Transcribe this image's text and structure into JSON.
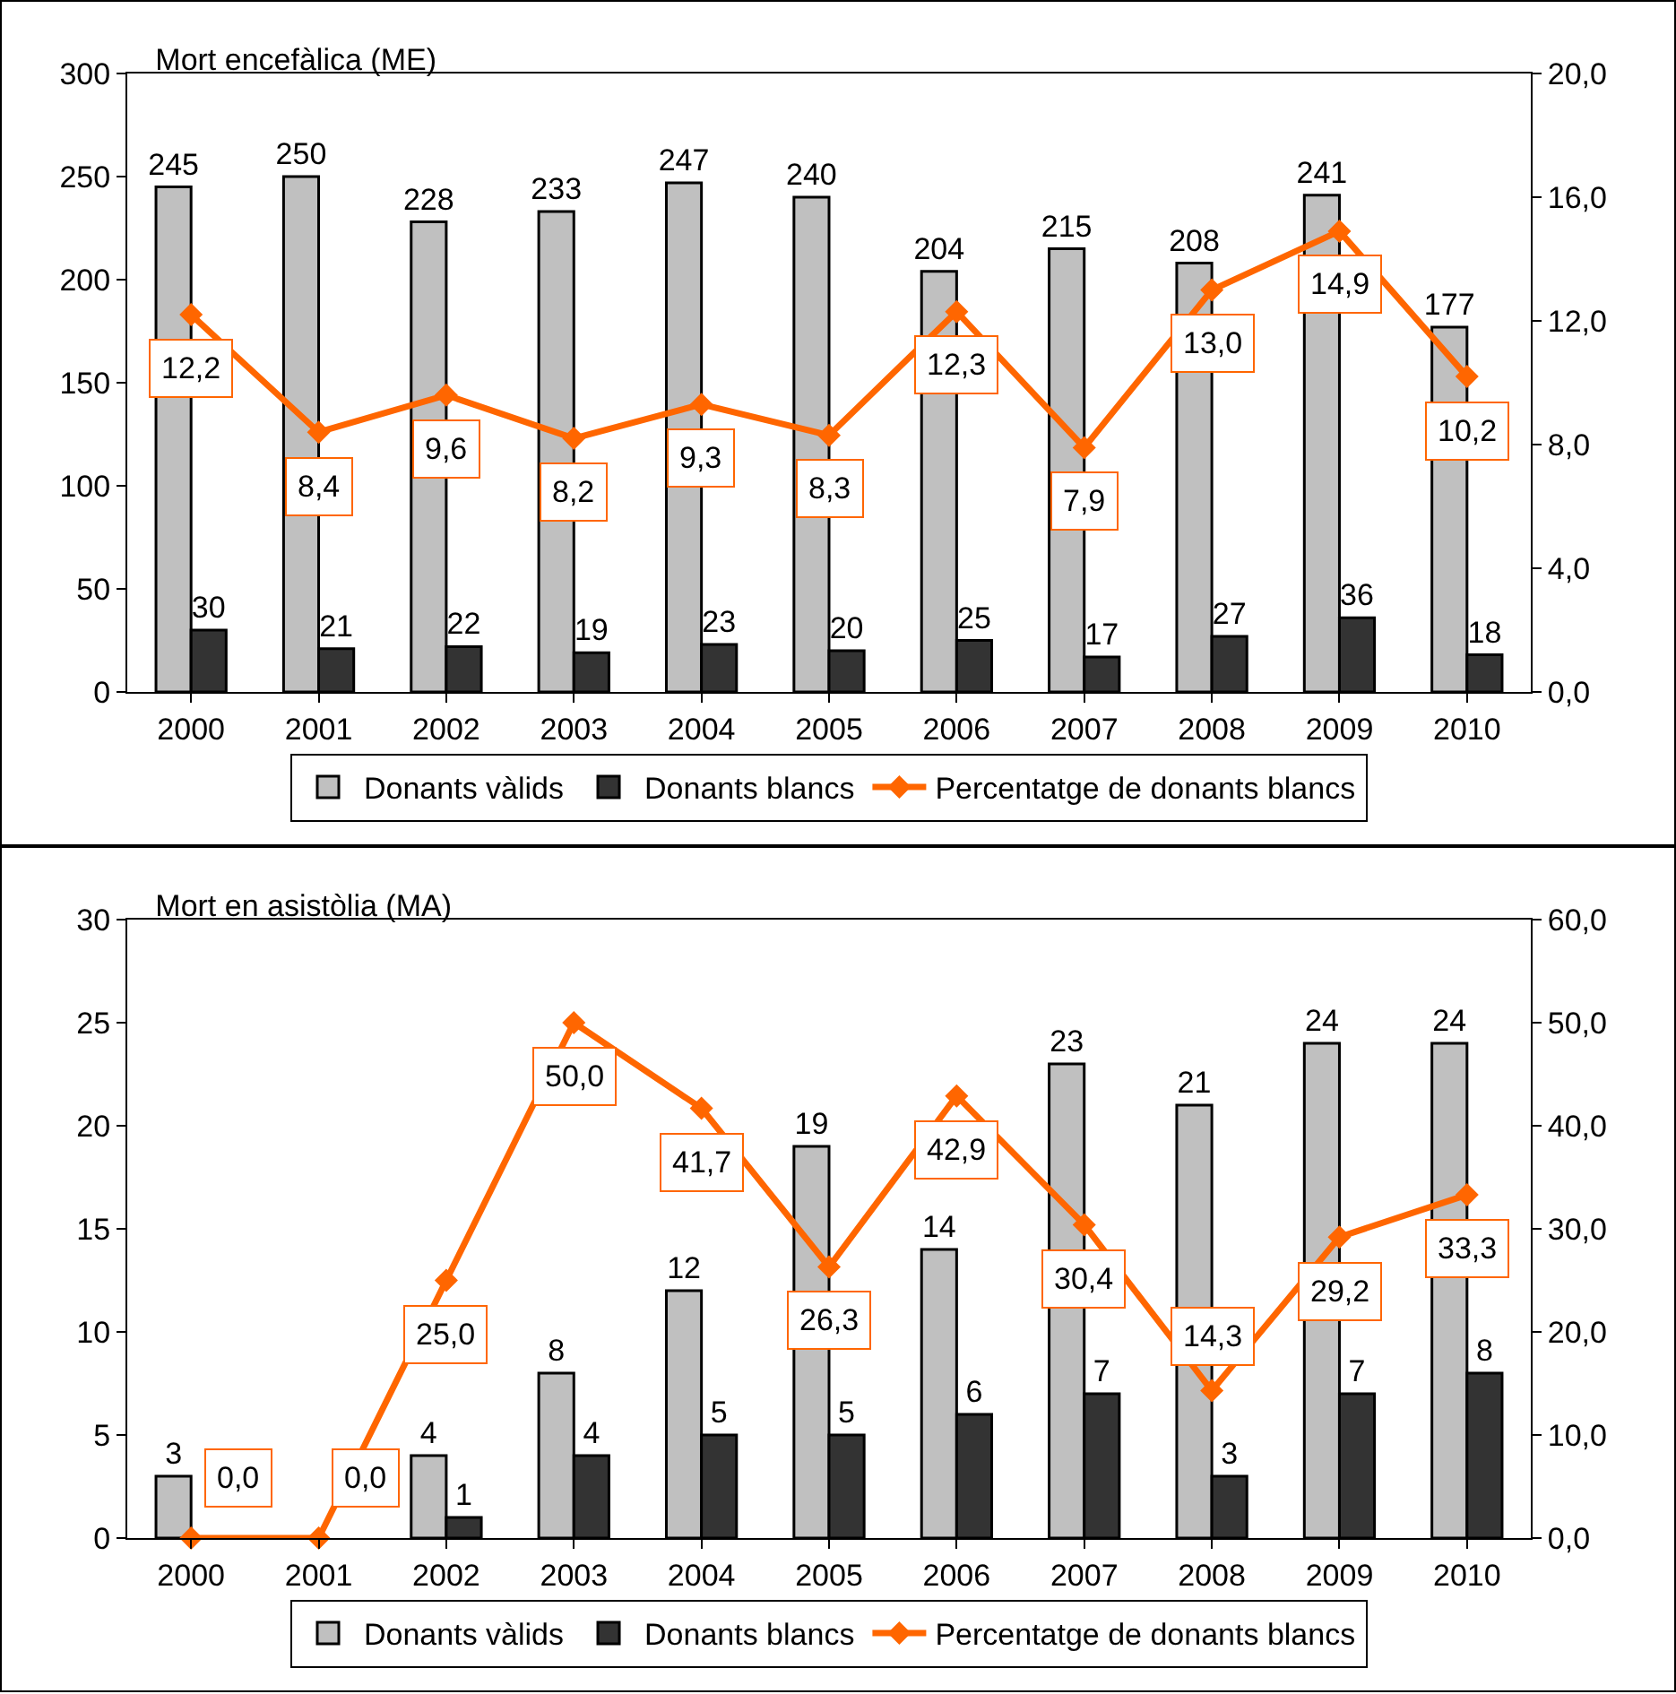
{
  "chart_data": [
    {
      "type": "bar",
      "title": "Mort encefàlica (ME)",
      "categories": [
        "2000",
        "2001",
        "2002",
        "2003",
        "2004",
        "2005",
        "2006",
        "2007",
        "2008",
        "2009",
        "2010"
      ],
      "series": [
        {
          "name": "Donants vàlids",
          "color": "#c0c0c0",
          "values": [
            245,
            250,
            228,
            233,
            247,
            240,
            204,
            215,
            208,
            241,
            177
          ]
        },
        {
          "name": "Donants blancs",
          "color": "#333333",
          "values": [
            30,
            21,
            22,
            19,
            23,
            20,
            25,
            17,
            27,
            36,
            18
          ]
        },
        {
          "name": "Percentatge de donants blancs",
          "type": "line",
          "axis": "y2",
          "color": "#ff6600",
          "values": [
            12.2,
            8.4,
            9.6,
            8.2,
            9.3,
            8.3,
            12.3,
            7.9,
            13.0,
            14.9,
            10.2
          ],
          "value_labels": [
            "12,2",
            "8,4",
            "9,6",
            "8,2",
            "9,3",
            "8,3",
            "12,3",
            "7,9",
            "13,0",
            "14,9",
            "10,2"
          ]
        }
      ],
      "ylim": [
        0,
        300
      ],
      "yticks": [
        0,
        50,
        100,
        150,
        200,
        250,
        300
      ],
      "y2lim": [
        0,
        20
      ],
      "y2ticks": [
        {
          "value": 0,
          "label": "0,0"
        },
        {
          "value": 4,
          "label": "4,0"
        },
        {
          "value": 8,
          "label": "8,0"
        },
        {
          "value": 12,
          "label": "12,0"
        },
        {
          "value": 16,
          "label": "16,0"
        },
        {
          "value": 20,
          "label": "20,0"
        }
      ],
      "data_labels": true,
      "legend": "bottom",
      "marker": "diamond",
      "grid": false
    },
    {
      "type": "bar",
      "title": "Mort en asistòlia (MA)",
      "categories": [
        "2000",
        "2001",
        "2002",
        "2003",
        "2004",
        "2005",
        "2006",
        "2007",
        "2008",
        "2009",
        "2010"
      ],
      "series": [
        {
          "name": "Donants vàlids",
          "color": "#c0c0c0",
          "values": [
            3,
            null,
            4,
            8,
            12,
            19,
            14,
            23,
            21,
            24,
            24
          ],
          "value_labels": [
            "3",
            null,
            "4",
            "8",
            "12",
            "19",
            "14",
            "23",
            "21",
            "24",
            "24"
          ]
        },
        {
          "name": "Donants blancs",
          "color": "#333333",
          "values": [
            null,
            null,
            1,
            4,
            5,
            5,
            6,
            7,
            3,
            7,
            8
          ],
          "value_labels": [
            null,
            null,
            "1",
            "4",
            "5",
            "5",
            "6",
            "7",
            "3",
            "7",
            "8"
          ]
        },
        {
          "name": "Percentatge de donants blancs",
          "type": "line",
          "axis": "y2",
          "color": "#ff6600",
          "values": [
            0.0,
            0.0,
            25.0,
            50.0,
            41.7,
            26.3,
            42.9,
            30.4,
            14.3,
            29.2,
            33.3
          ],
          "value_labels": [
            "0,0",
            "0,0",
            "25,0",
            "50,0",
            "41,7",
            "26,3",
            "42,9",
            "30,4",
            "14,3",
            "29,2",
            "33,3"
          ]
        }
      ],
      "ylim": [
        0,
        30
      ],
      "yticks": [
        0,
        5,
        10,
        15,
        20,
        25,
        30
      ],
      "y2lim": [
        0,
        60
      ],
      "y2ticks": [
        {
          "value": 0,
          "label": "0,0"
        },
        {
          "value": 10,
          "label": "10,0"
        },
        {
          "value": 20,
          "label": "20,0"
        },
        {
          "value": 30,
          "label": "30,0"
        },
        {
          "value": 40,
          "label": "40,0"
        },
        {
          "value": 50,
          "label": "50,0"
        },
        {
          "value": 60,
          "label": "60,0"
        }
      ],
      "legend": "bottom",
      "marker": "diamond",
      "grid": false
    }
  ]
}
